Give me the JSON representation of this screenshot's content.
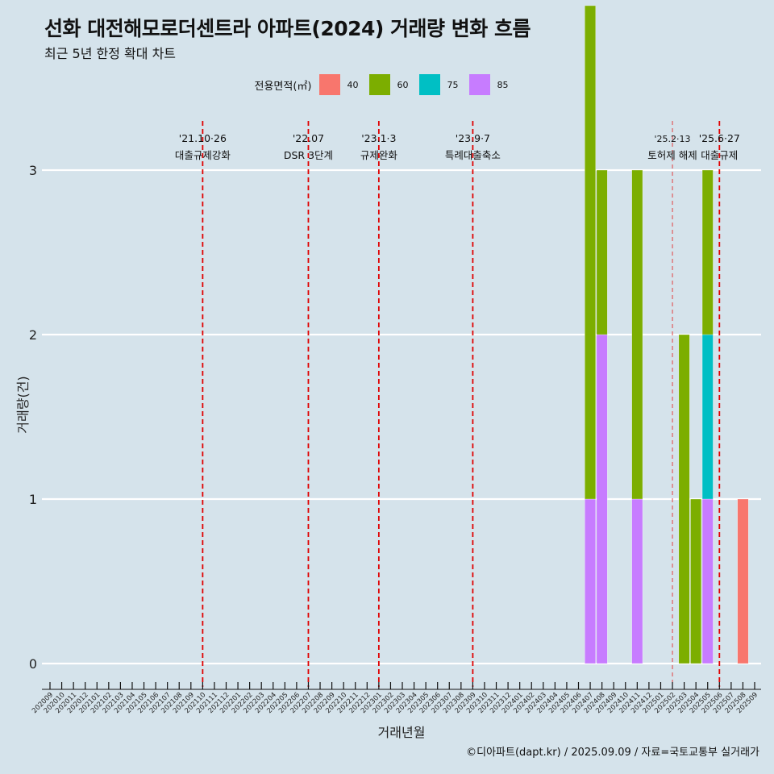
{
  "chart_data": {
    "type": "bar",
    "stacked": true,
    "title": "선화 대전해모로더센트라 아파트(2024) 거래량 변화 흐름",
    "subtitle": "최근 5년 한정 확대 차트",
    "xlabel": "거래년월",
    "ylabel": "거래량(건)",
    "ylim": [
      0,
      3
    ],
    "yticks": [
      0,
      1,
      2,
      3
    ],
    "legend": {
      "title": "전용면적(㎡)",
      "position": "top",
      "entries": [
        {
          "name": "40",
          "color": "#F8766D"
        },
        {
          "name": "60",
          "color": "#7CAE00"
        },
        {
          "name": "75",
          "color": "#00BFC4"
        },
        {
          "name": "85",
          "color": "#C77CFF"
        }
      ]
    },
    "categories": [
      "202009",
      "202010",
      "202011",
      "202012",
      "202101",
      "202102",
      "202103",
      "202104",
      "202105",
      "202106",
      "202107",
      "202108",
      "202109",
      "202110",
      "202111",
      "202112",
      "202201",
      "202202",
      "202203",
      "202204",
      "202205",
      "202206",
      "202207",
      "202208",
      "202209",
      "202210",
      "202211",
      "202212",
      "202301",
      "202302",
      "202303",
      "202304",
      "202305",
      "202306",
      "202307",
      "202308",
      "202309",
      "202310",
      "202311",
      "202312",
      "202401",
      "202402",
      "202403",
      "202404",
      "202405",
      "202406",
      "202407",
      "202408",
      "202409",
      "202410",
      "202411",
      "202412",
      "202501",
      "202502",
      "202503",
      "202504",
      "202505",
      "202506",
      "202507",
      "202508",
      "202509"
    ],
    "bars": [
      {
        "x": "202407",
        "size": "60",
        "value": 3
      },
      {
        "x": "202407",
        "size": "85",
        "value": 1
      },
      {
        "x": "202408",
        "size": "60",
        "value": 1
      },
      {
        "x": "202408",
        "size": "85",
        "value": 2
      },
      {
        "x": "202411",
        "size": "60",
        "value": 2
      },
      {
        "x": "202411",
        "size": "85",
        "value": 1
      },
      {
        "x": "202503",
        "size": "60",
        "value": 2
      },
      {
        "x": "202504",
        "size": "60",
        "value": 1
      },
      {
        "x": "202505",
        "size": "60",
        "value": 1
      },
      {
        "x": "202505",
        "size": "75",
        "value": 1
      },
      {
        "x": "202505",
        "size": "85",
        "value": 1
      },
      {
        "x": "202508",
        "size": "40",
        "value": 1
      }
    ],
    "events": [
      {
        "x": "202110",
        "date": "'21.10·26",
        "label": "대출규제강화",
        "style": "dashed"
      },
      {
        "x": "202207",
        "date": "'22.07",
        "label": "DSR 3단계",
        "style": "dashed"
      },
      {
        "x": "202301",
        "date": "'23.1·3",
        "label": "규제완화",
        "style": "dashed"
      },
      {
        "x": "202309",
        "date": "'23.9·7",
        "label": "특례대출축소",
        "style": "dashed"
      },
      {
        "x": "202502",
        "date": "'25.2·13",
        "label": "토허제 해제",
        "style": "thin-dashed"
      },
      {
        "x": "202506",
        "date": "'25.6·27",
        "label": "대출규제",
        "style": "dashed"
      }
    ],
    "grid": "horizontal-major"
  },
  "caption": "©디아파트(dapt.kr) / 2025.09.09 / 자료=국토교통부 실거래가"
}
